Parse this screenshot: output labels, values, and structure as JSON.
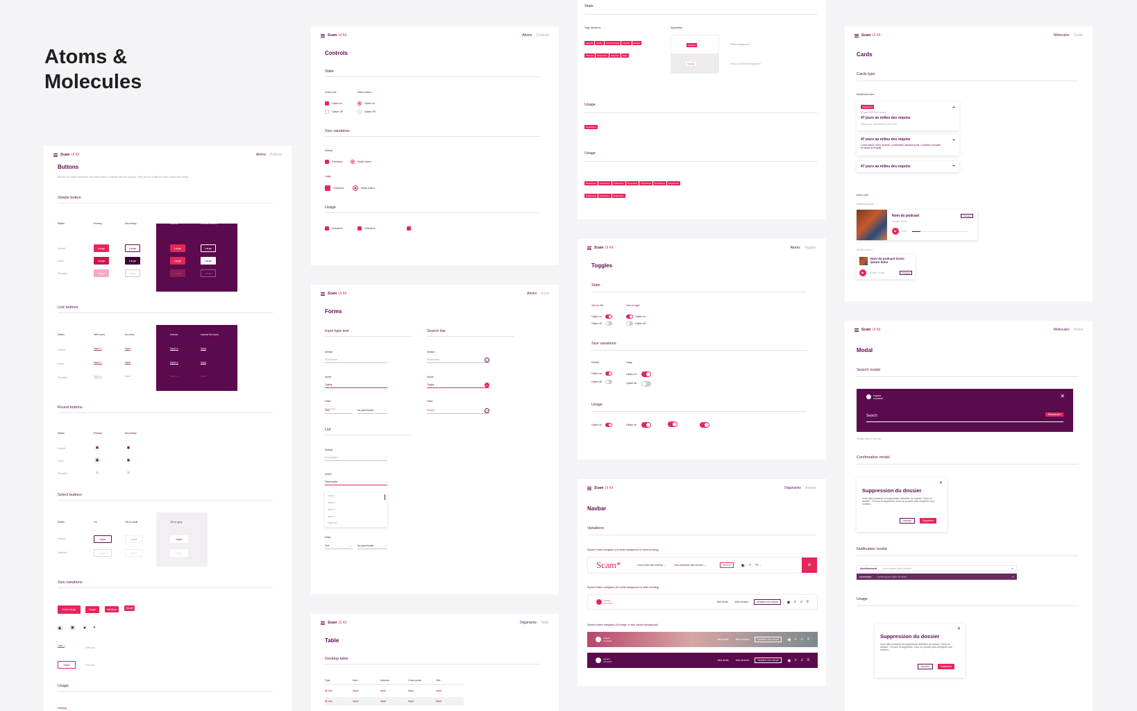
{
  "title": "Atoms & Molecules",
  "title_line1": "Atoms &",
  "title_line2": "Molecules",
  "brand": "Scam",
  "kit": "UI Kit",
  "colors": {
    "accent": "#e5265a",
    "plum": "#5c0a4e",
    "background": "#f4f3f6"
  },
  "buttons_board": {
    "crumb1": "Atoms",
    "crumb2": "Buttons",
    "title": "Buttons",
    "description": "Buttons are action elements, they allow users to interact with the product. They can be of different sizes, colors and status.",
    "simple_button": "Simple button",
    "cols": {
      "states": "States",
      "primary": "Primary",
      "secondary": "Secondary",
      "inverse": "Inverse",
      "inverse_outline": "Inverse-Outline"
    },
    "rows": {
      "default": "Default",
      "hover": "Hover",
      "disabled": "Disabled"
    },
    "btn_label": "Large",
    "link_buttons": "Link buttons",
    "link_cols": {
      "states": "States",
      "with_icons": "With icons",
      "no_icons": "No icons",
      "inverse": "Inverse",
      "inverse_no_icons": "Inverse No icons"
    },
    "input_label": "Input",
    "round_buttons": "Round buttons",
    "select_buttons": "Select buttons",
    "select_cols": {
      "states": "States",
      "on": "On",
      "off_white": "Off on white",
      "off_grey": "Off on grey"
    },
    "size_variations": "Size variations",
    "sizes": [
      "Extra large",
      "Large",
      "Medium",
      "Small"
    ],
    "link_label": "Link",
    "one_size": "One size",
    "usage": "Usage",
    "padding": "Padding"
  },
  "controls_board": {
    "crumb1": "Atoms",
    "crumb2": "Controls",
    "title": "Controls",
    "state": "State",
    "checkbox": "Check box",
    "radio": "Radio button",
    "option_on": "Option on",
    "option_off": "Option Off",
    "size_variations": "Size variations",
    "default": "Default",
    "large": "Large",
    "checkbox_label": "Checkbox",
    "radio_label": "Radio button",
    "usage": "Usage"
  },
  "forms_board": {
    "crumb1": "Atoms",
    "crumb2": "Form",
    "title": "Forms",
    "input_type_text": "Input type text",
    "search_bar": "Search bar",
    "default": "Default",
    "active": "Active",
    "filled": "Filled",
    "placeholder": "Placeholder",
    "typing": "Typing",
    "text": "Text",
    "no_placeholder": "No placeholder",
    "search": "Search",
    "list": "List",
    "inputs": [
      "Input 1",
      "Input 2",
      "Input 3",
      "Input 4",
      "Input Ver"
    ]
  },
  "table_board": {
    "crumb1": "Organisms",
    "crumb2": "Table",
    "title": "Table",
    "desktop_table": "Desktop table",
    "headers": [
      "Type",
      "Nom",
      "Adresse",
      "Code postal",
      "Ville"
    ],
    "rows": [
      [
        "Doc",
        "Input",
        "Input",
        "Input",
        "Input"
      ],
      [
        "Doc",
        "Input",
        "Input",
        "Input",
        "Input"
      ]
    ]
  },
  "tags_board": {
    "state": "State",
    "tags_variations": "Tags variations",
    "application": "Application",
    "tags": [
      "Agenda",
      "Atelier",
      "Commnuniqué",
      "Dossier",
      "Etudes",
      "Podcast",
      "Projections",
      "Rapports",
      "Salle"
    ],
    "podcast": "Podcast",
    "white_bg": "White background",
    "grey_bg": "Grey or colored background",
    "usage": "Usage",
    "projections": "Projections"
  },
  "toggles_board": {
    "crumb1": "Atoms",
    "crumb2": "Toggles",
    "title": "Toggles",
    "state": "State",
    "text_left": "Text on left",
    "text_right": "Text on right",
    "option_on": "Option on",
    "option_off": "Option off",
    "size_variations": "Size variations",
    "default": "Default",
    "large": "Large",
    "usage": "Usage"
  },
  "navbar_board": {
    "crumb1": "Organisms",
    "crumb2": "Navbar",
    "title": "Navbar",
    "variations": "Variations",
    "public_nav": "Espace Public navigation (On white background or when scrolling)",
    "auteur_nav": "Espace Auteur navigation (On white background or when scrolling)",
    "auteur_nav_img": "Espace Auteur navigation (On image or dark colored background)",
    "logo": "Scam*",
    "menu1": "Vous créez des œuvres",
    "menu2": "Vous exploitez des œuvres",
    "adherer": "Adhérer",
    "lang": "FR",
    "espace": "espace connecté",
    "mes_droits": "Mes droits",
    "mes_oeuvres": "Mes œuvres",
    "declarer": "Déclarer une œuvre"
  },
  "cards_board": {
    "crumb1": "Molecules",
    "crumb2": "Cards",
    "title": "Cards",
    "cards_type": "Cards type",
    "redirection_card": "Redirection card",
    "tag": "Projections",
    "date": "26 juin 2021 (en cours)",
    "card_title": "47 jours au milieu des requins",
    "card_meta": "Diffusé sur Ushuaïa le 6 juin 2021",
    "card_desc": "Lorem ipsum dolor sit amet, consectetur adipiscing elit. Curabitur convallis et neque id fringilla.",
    "audio_card": "Audio card",
    "desktop_version": "Desktop version",
    "podcast_name": "Nom du podcast",
    "podcast_meta": "18 juin • 8 min",
    "share": "Partager",
    "time": "0:00",
    "mobile_version": "Mobile version",
    "mobile_title": "Nom du podcast lorem ipsum dolor"
  },
  "modal_board": {
    "crumb1": "Molecules",
    "crumb2": "Modal",
    "title": "Modal",
    "search_modal": "Search modal",
    "espace": "espace connecté",
    "search": "Search",
    "rechercher": "Rechercher",
    "always_fixed": "Always fixed to the top",
    "confirmation_modal": "Confirmation modal",
    "confirm_title": "Suppression du dossier",
    "confirm_text": "Vous allez entrainer la suppression définitive du dossier \"Nom du dossier\". Si vous le supprimez, vous ne pourrez plus récupérer son contenu.",
    "annuler": "Annuler",
    "supprimer": "Supprimer",
    "notification_modal": "Notification modal",
    "avertissement": "Avertissement",
    "information": "Information",
    "lorem": "Lorem ipsum dolor sit amet",
    "usage": "Usage"
  }
}
